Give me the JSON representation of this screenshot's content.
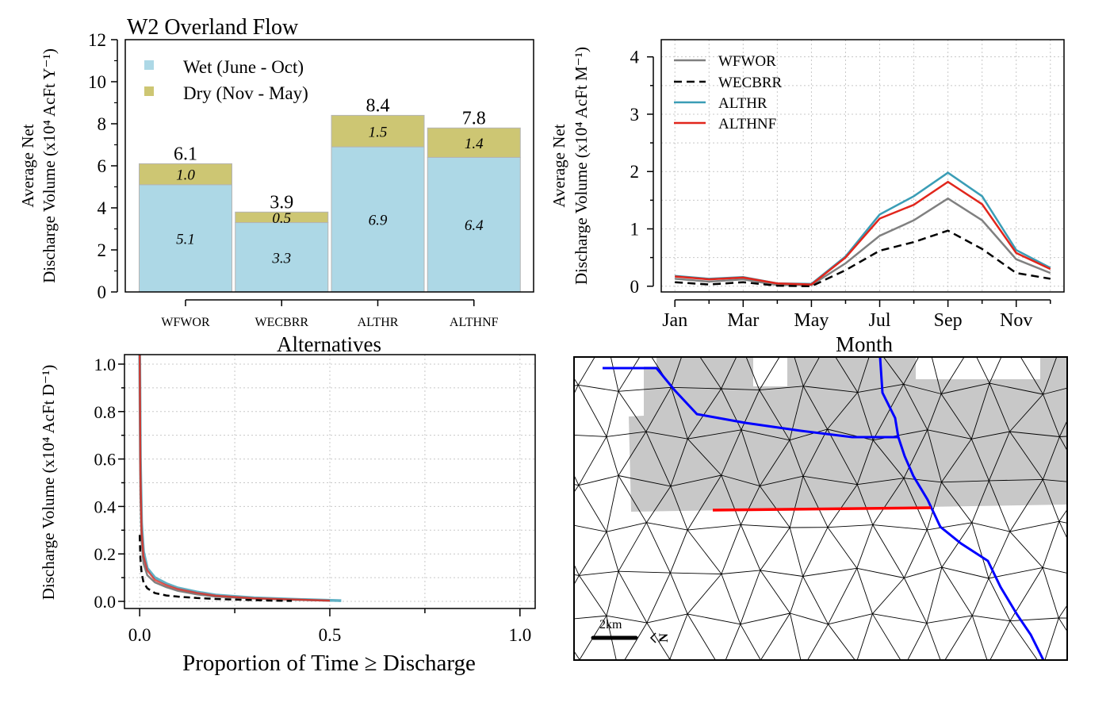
{
  "colors": {
    "wet": "#add8e6",
    "dry": "#cdc673",
    "wfwor": "#808080",
    "wecbrr": "#000000",
    "althr": "#3a9db6",
    "althnf": "#e1261c",
    "mesh_shade": "#c8c8c8",
    "river": "#0000ff",
    "section": "#ff0000"
  },
  "chart_data": [
    {
      "type": "bar",
      "title": "W2 Overland Flow",
      "xlabel": "Alternatives",
      "ylabel": [
        "Average Net",
        "Discharge Volume (x10⁴ AcFt Y⁻¹)"
      ],
      "categories": [
        "WFWOR",
        "WECBRR",
        "ALTHR",
        "ALTHNF"
      ],
      "stacked": true,
      "series": [
        {
          "name": "Wet (June - Oct)",
          "values": [
            5.1,
            3.3,
            6.9,
            6.4
          ],
          "labels": [
            "5.1",
            "3.3",
            "6.9",
            "6.4"
          ]
        },
        {
          "name": "Dry (Nov - May)",
          "values": [
            1.0,
            0.5,
            1.5,
            1.4
          ],
          "labels": [
            "1.0",
            "0.5",
            "1.5",
            "1.4"
          ]
        }
      ],
      "totals": [
        "6.1",
        "3.9",
        "8.4",
        "7.8"
      ],
      "ylim": [
        0,
        12
      ],
      "yticks": [
        0,
        2,
        4,
        6,
        8,
        10,
        12
      ],
      "legend": "top-left"
    },
    {
      "type": "line",
      "xlabel": "Month",
      "ylabel": [
        "Average Net",
        "Discharge Volume (x10⁴ AcFt M⁻¹)"
      ],
      "x": [
        1,
        2,
        3,
        4,
        5,
        6,
        7,
        8,
        9,
        10,
        11,
        12
      ],
      "xticks": [
        1,
        3,
        5,
        7,
        9,
        11
      ],
      "xtick_labels": [
        "Jan",
        "Mar",
        "May",
        "Jul",
        "Sep",
        "Nov"
      ],
      "xlim": [
        0.6,
        12.4
      ],
      "ylim": [
        -0.1,
        4.3
      ],
      "yticks": [
        0,
        1,
        2,
        3,
        4
      ],
      "grid": true,
      "legend": "top-left",
      "series": [
        {
          "name": "WFWOR",
          "values": [
            0.13,
            0.08,
            0.12,
            0.02,
            0.02,
            0.4,
            0.88,
            1.15,
            1.53,
            1.15,
            0.47,
            0.23
          ]
        },
        {
          "name": "WECBRR",
          "values": [
            0.07,
            0.03,
            0.07,
            0.01,
            0.0,
            0.28,
            0.62,
            0.77,
            0.97,
            0.65,
            0.23,
            0.13
          ]
        },
        {
          "name": "ALTHR",
          "values": [
            0.18,
            0.13,
            0.16,
            0.05,
            0.04,
            0.52,
            1.25,
            1.57,
            1.98,
            1.57,
            0.63,
            0.32
          ]
        },
        {
          "name": "ALTHNF",
          "values": [
            0.17,
            0.12,
            0.15,
            0.05,
            0.03,
            0.5,
            1.18,
            1.42,
            1.82,
            1.43,
            0.58,
            0.3
          ]
        }
      ]
    },
    {
      "type": "line",
      "xlabel": "Proportion of Time ≥ Discharge",
      "ylabel": [
        "Discharge Volume (x10⁴ AcFt D⁻¹)"
      ],
      "xlim": [
        -0.04,
        1.04
      ],
      "ylim": [
        -0.03,
        1.04
      ],
      "xticks": [
        0.0,
        0.5,
        1.0
      ],
      "xtick_labels": [
        "0.0",
        "0.5",
        "1.0"
      ],
      "yticks": [
        0.0,
        0.2,
        0.4,
        0.6,
        0.8,
        1.0
      ],
      "ytick_labels": [
        "0.0",
        "0.2",
        "0.4",
        "0.6",
        "0.8",
        "1.0"
      ],
      "grid": true,
      "series": [
        {
          "name": "WFWOR",
          "x": [
            0,
            0.002,
            0.005,
            0.01,
            0.02,
            0.04,
            0.07,
            0.1,
            0.15,
            0.2,
            0.3,
            0.4,
            0.5
          ],
          "y": [
            1.05,
            0.45,
            0.25,
            0.16,
            0.11,
            0.08,
            0.06,
            0.045,
            0.03,
            0.02,
            0.012,
            0.007,
            0.003
          ]
        },
        {
          "name": "WECBRR",
          "x": [
            0,
            0.002,
            0.005,
            0.01,
            0.02,
            0.04,
            0.07,
            0.1,
            0.15,
            0.2,
            0.3,
            0.35,
            0.4
          ],
          "y": [
            0.28,
            0.18,
            0.12,
            0.08,
            0.055,
            0.035,
            0.025,
            0.02,
            0.014,
            0.01,
            0.005,
            0.003,
            0.002
          ]
        },
        {
          "name": "ALTHR",
          "x": [
            0,
            0.002,
            0.005,
            0.01,
            0.02,
            0.04,
            0.07,
            0.1,
            0.15,
            0.2,
            0.3,
            0.4,
            0.53
          ],
          "y": [
            1.05,
            0.6,
            0.33,
            0.21,
            0.14,
            0.1,
            0.075,
            0.057,
            0.04,
            0.027,
            0.015,
            0.009,
            0.003
          ]
        },
        {
          "name": "ALTHNF",
          "x": [
            0,
            0.002,
            0.005,
            0.01,
            0.02,
            0.04,
            0.07,
            0.1,
            0.15,
            0.2,
            0.3,
            0.4,
            0.5
          ],
          "y": [
            1.05,
            0.55,
            0.3,
            0.19,
            0.13,
            0.09,
            0.068,
            0.052,
            0.036,
            0.024,
            0.013,
            0.008,
            0.003
          ]
        }
      ]
    }
  ],
  "map": {
    "scale_label": "2km",
    "north_label": "N"
  }
}
